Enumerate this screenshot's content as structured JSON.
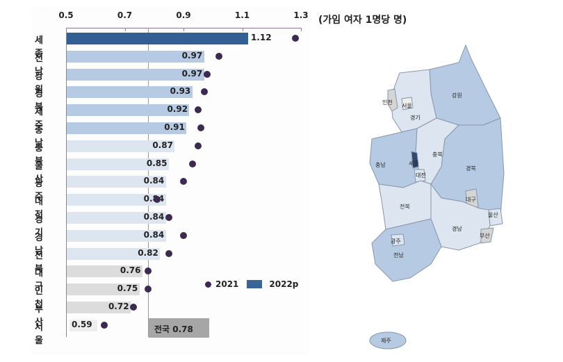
{
  "unit_label": "(가임 여자 1명당 명)",
  "national": {
    "label": "전국 0.78",
    "value": 0.78
  },
  "legend": {
    "dot_label": "2021",
    "bar_label": "2022p"
  },
  "colors": {
    "dark_bar": "#345f94",
    "mid_bar": "#b6cae3",
    "light_bar": "#dce5f0",
    "gray_bar": "#dcdcdc",
    "dot": "#3d2a50",
    "national_box": "#a6a6a6"
  },
  "chart_data": {
    "type": "bar",
    "orientation": "horizontal",
    "title": "",
    "xlabel": "",
    "ylabel": "",
    "unit": "(가임 여자 1명당 명)",
    "xlim": [
      0.5,
      1.3
    ],
    "x_ticks": [
      "0.5",
      "0.7",
      "0.9",
      "1.1",
      "1.3"
    ],
    "categories": [
      "세 종",
      "전 남",
      "강 원",
      "경 북",
      "제 주",
      "충 남",
      "충 북",
      "울 산",
      "광 주",
      "대 전",
      "경 기",
      "경 남",
      "전 북",
      "대 구",
      "인 천",
      "부 산",
      "서 울"
    ],
    "series": [
      {
        "name": "2022p",
        "kind": "bar",
        "values": [
          1.12,
          0.97,
          0.97,
          0.93,
          0.92,
          0.91,
          0.87,
          0.85,
          0.84,
          0.84,
          0.84,
          0.84,
          0.82,
          0.76,
          0.75,
          0.72,
          0.59
        ]
      },
      {
        "name": "2021",
        "kind": "dot",
        "values": [
          1.28,
          1.02,
          0.98,
          0.97,
          0.95,
          0.96,
          0.95,
          0.93,
          0.9,
          0.81,
          0.85,
          0.9,
          0.85,
          0.78,
          0.78,
          0.73,
          0.63
        ]
      }
    ],
    "value_labels": [
      "1.12",
      "0.97",
      "0.97",
      "0.93",
      "0.92",
      "0.91",
      "0.87",
      "0.85",
      "0.84",
      "0.84",
      "0.84",
      "0.84",
      "0.82",
      "0.76",
      "0.75",
      "0.72",
      "0.59"
    ],
    "reference_line": {
      "label": "전국 0.78",
      "value": 0.78
    },
    "legend_position": "bottom-right",
    "grid": false
  },
  "map": {
    "labels": [
      "인천",
      "서울",
      "경기",
      "강원",
      "충북",
      "충남",
      "세종",
      "대전",
      "경북",
      "대구",
      "전북",
      "울산",
      "경남",
      "부산",
      "광주",
      "전남",
      "제주"
    ]
  }
}
